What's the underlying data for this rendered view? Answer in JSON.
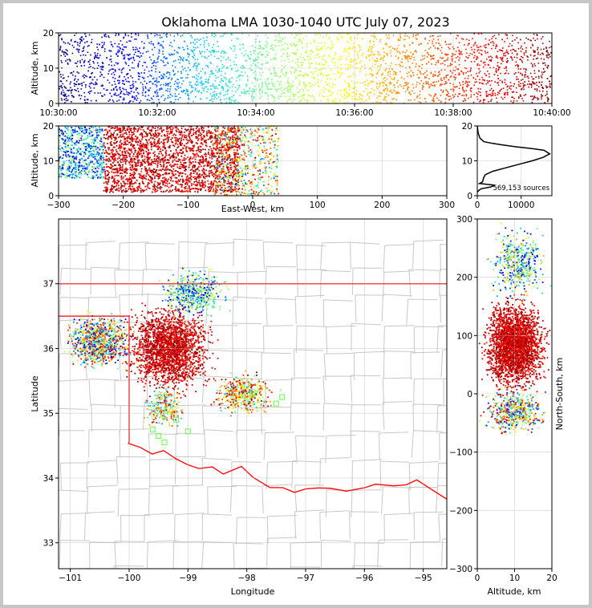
{
  "chart_data": [
    {
      "type": "scatter",
      "panel": "altitude-time",
      "title": "Oklahoma LMA 1030-1040 UTC July 07, 2023",
      "ylabel": "Altitude, km",
      "xlabel": "",
      "x_ticks": [
        "10:30:00",
        "10:32:00",
        "10:34:00",
        "10:36:00",
        "10:38:00",
        "10:40:00"
      ],
      "y_ticks": [
        0,
        10,
        20
      ],
      "xlim": [
        "10:30:00",
        "10:40:00"
      ],
      "ylim": [
        0,
        20
      ],
      "color_encoding": "time",
      "colormap": [
        "#00007f",
        "#0000ff",
        "#00c8ff",
        "#7fff7f",
        "#ffff00",
        "#ff8000",
        "#ff0000",
        "#7f0000"
      ],
      "density_y": [
        [
          0,
          2,
          0.3
        ],
        [
          2,
          6,
          0.9
        ],
        [
          6,
          12,
          1.0
        ],
        [
          12,
          16,
          0.8
        ],
        [
          16,
          20,
          0.5
        ]
      ],
      "grid": true
    },
    {
      "type": "scatter",
      "panel": "altitude-east-west",
      "xlabel": "East-West, km",
      "ylabel": "Altitude, km",
      "x_ticks": [
        -300,
        -200,
        -100,
        0,
        100,
        200,
        300
      ],
      "y_ticks": [
        0,
        10,
        20
      ],
      "xlim": [
        -300,
        300
      ],
      "ylim": [
        0,
        20
      ],
      "clusters": [
        {
          "x": [
            -300,
            -230
          ],
          "y": [
            5,
            20
          ],
          "weight": 0.18,
          "tmin": 0.05,
          "tmax": 0.5
        },
        {
          "x": [
            -230,
            -20
          ],
          "y": [
            1,
            20
          ],
          "weight": 0.65,
          "tmin": 0.82,
          "tmax": 1.0
        },
        {
          "x": [
            -60,
            40
          ],
          "y": [
            0,
            20
          ],
          "weight": 0.17,
          "tmin": 0.2,
          "tmax": 0.95
        }
      ],
      "grid": true
    },
    {
      "type": "line",
      "panel": "altitude-histogram",
      "annotation": "569,153 sources",
      "x_ticks": [
        0,
        10000
      ],
      "y_ticks": [
        0,
        10,
        20
      ],
      "xlim": [
        0,
        17000
      ],
      "ylim": [
        0,
        20
      ],
      "x": [
        0,
        300,
        900,
        3000,
        4000,
        500,
        1200,
        1400,
        1800,
        3500,
        6500,
        9500,
        12500,
        15000,
        16500,
        15200,
        12500,
        9000,
        6000,
        3500,
        1500,
        600,
        200,
        100,
        0
      ],
      "y": [
        1,
        1.5,
        2,
        2.5,
        3,
        3.5,
        4,
        5,
        6,
        7,
        8,
        9,
        10,
        11,
        12,
        13,
        13.5,
        14,
        14.5,
        15,
        15.5,
        16.5,
        18,
        19,
        20
      ],
      "grid": true
    },
    {
      "type": "scatter",
      "panel": "plan-view-map",
      "xlabel": "Longitude",
      "ylabel": "Latitude",
      "x_ticks": [
        -101,
        -100,
        -99,
        -98,
        -97,
        -96,
        -95
      ],
      "y_ticks": [
        33,
        34,
        35,
        36,
        37
      ],
      "xlim": [
        -101.2,
        -94.6
      ],
      "ylim": [
        32.6,
        38.0
      ],
      "state_border_color": "#ff0000",
      "county_line_color": "#c8c8c8",
      "clusters": [
        {
          "lon": [
            -101.2,
            -99.8
          ],
          "lat": [
            35.6,
            36.6
          ],
          "weight": 0.22,
          "tmin": 0.05,
          "tmax": 0.95
        },
        {
          "lon": [
            -100.2,
            -98.4
          ],
          "lat": [
            35.2,
            36.8
          ],
          "weight": 0.5,
          "tmin": 0.82,
          "tmax": 1.0
        },
        {
          "lon": [
            -99.6,
            -98.2
          ],
          "lat": [
            36.4,
            37.3
          ],
          "weight": 0.12,
          "tmin": 0.1,
          "tmax": 0.6
        },
        {
          "lon": [
            -98.7,
            -97.4
          ],
          "lat": [
            34.9,
            35.7
          ],
          "weight": 0.1,
          "tmin": 0.3,
          "tmax": 1.0
        },
        {
          "lon": [
            -99.8,
            -99.0
          ],
          "lat": [
            34.7,
            35.5
          ],
          "weight": 0.06,
          "tmin": 0.2,
          "tmax": 0.9
        }
      ],
      "open_markers_lonlat": [
        [
          -97.4,
          35.25
        ],
        [
          -97.5,
          35.15
        ],
        [
          -99.4,
          34.55
        ],
        [
          -99.5,
          34.65
        ],
        [
          -99.6,
          34.75
        ],
        [
          -99.0,
          34.72
        ],
        [
          -99.2,
          34.9
        ],
        [
          -97.9,
          35.3
        ]
      ],
      "grid": true
    },
    {
      "type": "scatter",
      "panel": "north-south-altitude",
      "xlabel": "Altitude, km",
      "ylabel": "North-South, km",
      "x_ticks": [
        0,
        10,
        20
      ],
      "y_ticks": [
        -300,
        -200,
        -100,
        0,
        100,
        200,
        300
      ],
      "xlim": [
        0,
        20
      ],
      "ylim": [
        -300,
        300
      ],
      "clusters": [
        {
          "x": [
            0,
            20
          ],
          "y": [
            -10,
            180
          ],
          "weight": 0.72,
          "tmin": 0.82,
          "tmax": 1.0
        },
        {
          "x": [
            2,
            20
          ],
          "y": [
            150,
            300
          ],
          "weight": 0.13,
          "tmin": 0.05,
          "tmax": 0.7
        },
        {
          "x": [
            0,
            20
          ],
          "y": [
            -80,
            20
          ],
          "weight": 0.15,
          "tmin": 0.1,
          "tmax": 1.0
        }
      ],
      "grid": true
    }
  ]
}
